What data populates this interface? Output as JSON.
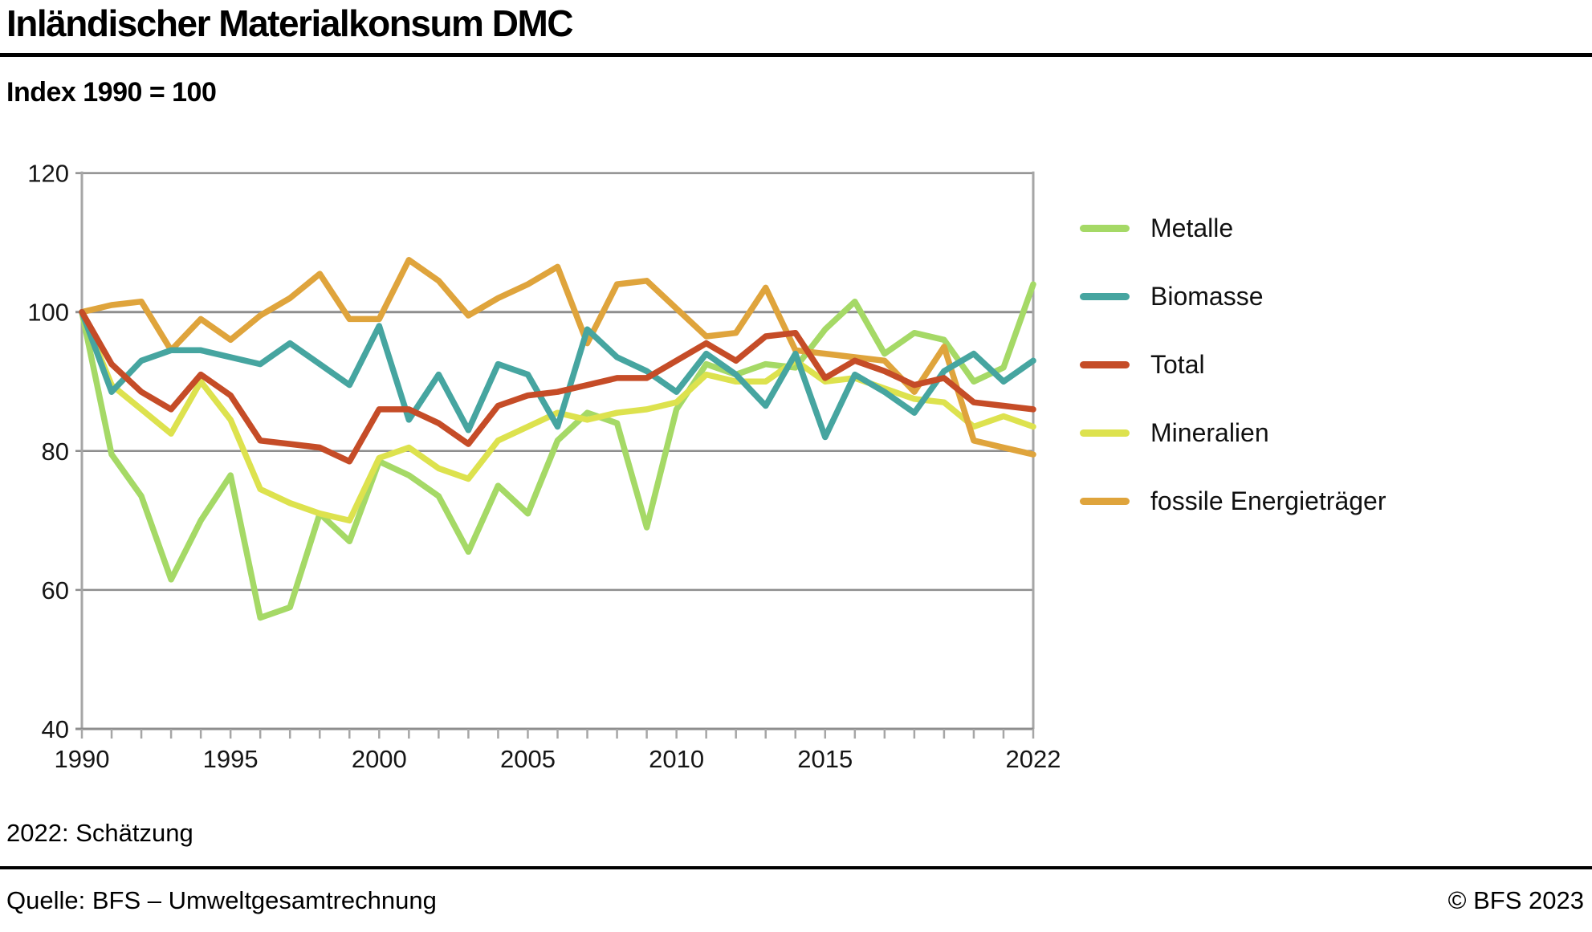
{
  "page": {
    "title": "Inländischer Materialkonsum DMC",
    "subtitle": "Index 1990 = 100",
    "footnote": "2022: Schätzung",
    "source": "Quelle: BFS – Umweltgesamtrechnung",
    "copyright": "© BFS 2023"
  },
  "chart_data": {
    "type": "line",
    "title": "Inländischer Materialkonsum DMC",
    "ylabel": "Index 1990 = 100",
    "xlabel": "",
    "grid": true,
    "legend_position": "right",
    "ylim": [
      40,
      120
    ],
    "yticks": [
      40,
      60,
      80,
      100,
      120
    ],
    "xticks": [
      1990,
      1995,
      2000,
      2005,
      2010,
      2015,
      2022
    ],
    "x": [
      1990,
      1991,
      1992,
      1993,
      1994,
      1995,
      1996,
      1997,
      1998,
      1999,
      2000,
      2001,
      2002,
      2003,
      2004,
      2005,
      2006,
      2007,
      2008,
      2009,
      2010,
      2011,
      2012,
      2013,
      2014,
      2015,
      2016,
      2017,
      2018,
      2019,
      2020,
      2021,
      2022
    ],
    "series": [
      {
        "name": "Metalle",
        "color": "#a5d966",
        "values": [
          100,
          79.5,
          73.5,
          61.5,
          70,
          76.5,
          56,
          57.5,
          71,
          67,
          78.5,
          76.5,
          73.5,
          65.5,
          75,
          71,
          81.5,
          85.5,
          84,
          69,
          86,
          92.5,
          91,
          92.5,
          92,
          97.5,
          101.5,
          94,
          97,
          96,
          90,
          92,
          104
        ]
      },
      {
        "name": "Biomasse",
        "color": "#46a5a0",
        "values": [
          100,
          88.5,
          93,
          94.5,
          94.5,
          93.5,
          92.5,
          95.5,
          92.5,
          89.5,
          98,
          84.5,
          91,
          83,
          92.5,
          91,
          83.5,
          97.5,
          93.5,
          91.5,
          88.5,
          94,
          91,
          86.5,
          94,
          82,
          91,
          88.5,
          85.5,
          91.5,
          94,
          90,
          93
        ]
      },
      {
        "name": "Total",
        "color": "#c54c27",
        "values": [
          100,
          92.5,
          88.5,
          86,
          91,
          88,
          81.5,
          81,
          80.5,
          78.5,
          86,
          86,
          84,
          81,
          86.5,
          88,
          88.5,
          89.5,
          90.5,
          90.5,
          93,
          95.5,
          93,
          96.5,
          97,
          90.5,
          93,
          91.5,
          89.5,
          90.5,
          87,
          86.5,
          86
        ]
      },
      {
        "name": "Mineralien",
        "color": "#dde24e",
        "values": [
          100,
          89.5,
          86,
          82.5,
          90,
          84.5,
          74.5,
          72.5,
          71,
          70,
          79,
          80.5,
          77.5,
          76,
          81.5,
          83.5,
          85.5,
          84.5,
          85.5,
          86,
          87,
          91,
          90,
          90,
          93,
          90,
          90.5,
          89,
          87.5,
          87,
          83.5,
          85,
          83.5
        ]
      },
      {
        "name": "fossile Energieträger",
        "color": "#dfa43c",
        "values": [
          100,
          101,
          101.5,
          94.5,
          99,
          96,
          99.5,
          102,
          105.5,
          99,
          99,
          107.5,
          104.5,
          99.5,
          102,
          104,
          106.5,
          95.5,
          104,
          104.5,
          100.5,
          96.5,
          97,
          103.5,
          94.5,
          94,
          93.5,
          93,
          88.5,
          95,
          81.5,
          80.5,
          79.5
        ]
      }
    ],
    "draw_order": [
      "Metalle",
      "Mineralien",
      "fossile Energieträger",
      "Biomasse",
      "Total"
    ]
  }
}
